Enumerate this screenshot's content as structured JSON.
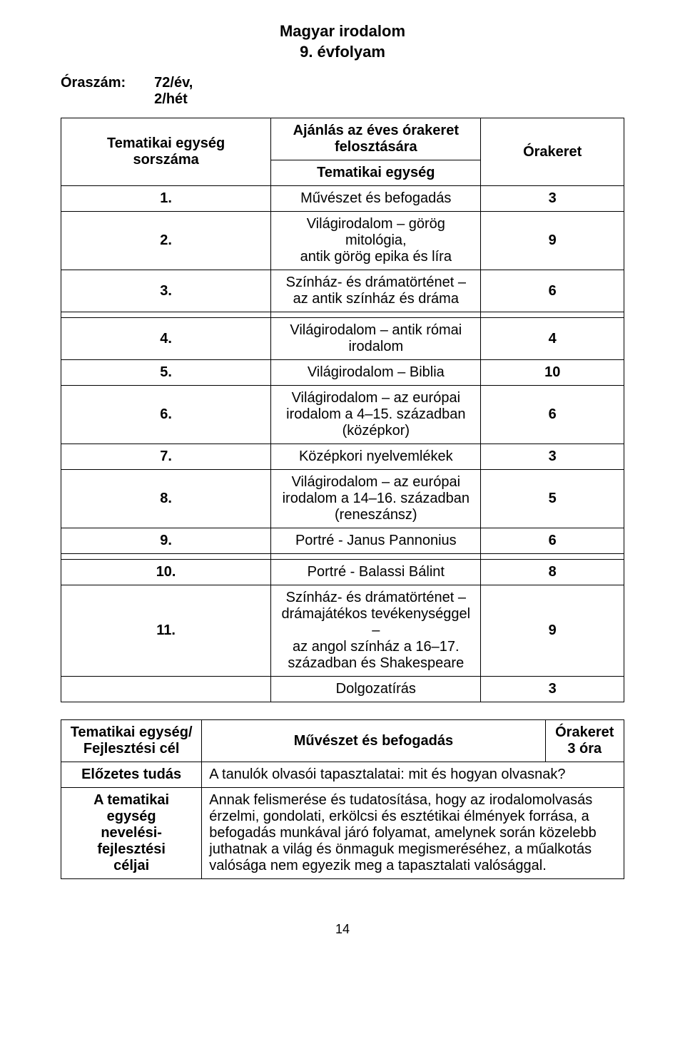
{
  "title_line1": "Magyar irodalom",
  "title_line2": "9. évfolyam",
  "hours_label": "Óraszám:",
  "hours_value": "72/év,\n2/hét",
  "ajanlas": "Ajánlás az éves órakeret felosztására",
  "col1_header1": "Tematikai egység",
  "col1_header2": "sorszáma",
  "col2_header": "Tematikai egység",
  "col3_header": "Órakeret",
  "rows": [
    {
      "n": "1.",
      "text": "Művészet és befogadás",
      "h": "3"
    },
    {
      "n": "2.",
      "text": "Világirodalom – görög mitológia,\nantik görög epika és líra",
      "h": "9"
    },
    {
      "n": "3.",
      "text": "Színház- és drámatörténet – az antik színház és dráma",
      "h": "6"
    },
    {
      "n": "4.",
      "text": "Világirodalom – antik római irodalom",
      "h": "4"
    },
    {
      "n": "5.",
      "text": "Világirodalom – Biblia",
      "h": "10"
    },
    {
      "n": "6.",
      "text": "Világirodalom – az európai irodalom a 4–15. században\n(középkor)",
      "h": "6"
    },
    {
      "n": "7.",
      "text": "Középkori nyelvemlékek",
      "h": "3"
    },
    {
      "n": "8.",
      "text": "Világirodalom – az európai irodalom a 14–16. században\n(reneszánsz)",
      "h": "5"
    },
    {
      "n": "9.",
      "text": "Portré - Janus Pannonius",
      "h": "6"
    },
    {
      "n": "10.",
      "text": "Portré - Balassi Bálint",
      "h": "8"
    },
    {
      "n": "11.",
      "text": "Színház- és drámatörténet – drámajátékos tevékenységgel –\naz angol színház a 16–17. században és Shakespeare",
      "h": "9"
    },
    {
      "n": "",
      "text": "Dolgozatírás",
      "h": "3"
    }
  ],
  "tbl2": {
    "r1_label": "Tematikai egység/\nFejlesztési cél",
    "r1_mid": "Művészet és befogadás",
    "r1_right": "Órakeret\n3 óra",
    "r2_label": "Előzetes tudás",
    "r2_text": "A tanulók olvasói tapasztalatai: mit és hogyan olvasnak?",
    "r3_label": "A tematikai egység\nnevelési-fejlesztési\ncéljai",
    "r3_text": "Annak felismerése és tudatosítása, hogy az irodalomolvasás érzelmi, gondolati, erkölcsi és esztétikai élmények forrása, a befogadás munkával járó folyamat, amelynek során közelebb juthatnak a világ és önmaguk megismeréséhez, a műalkotás valósága nem egyezik meg a tapasztalati valósággal."
  },
  "page_number": "14"
}
